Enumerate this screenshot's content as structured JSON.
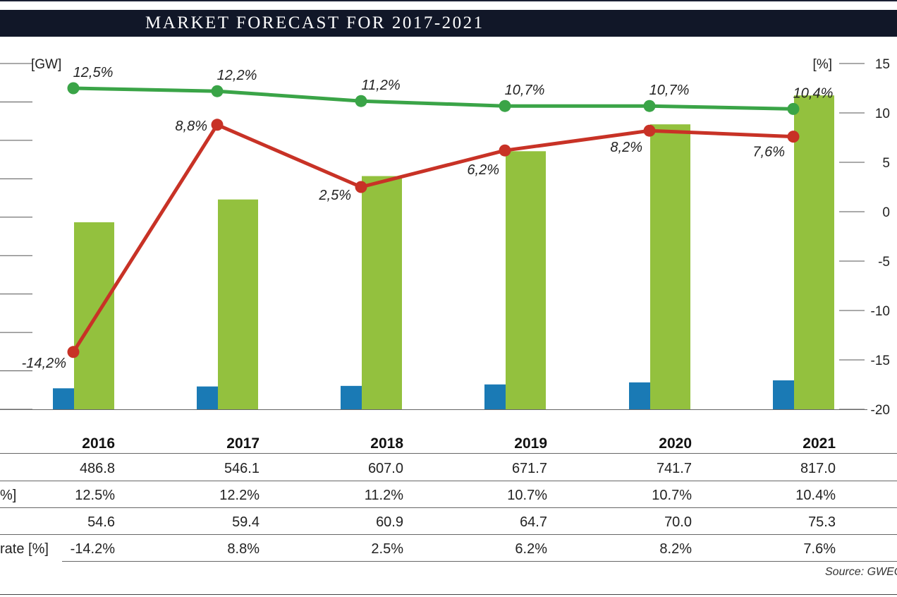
{
  "title": "MARKET FORECAST FOR 2017-2021",
  "source": "Source: GWEC",
  "chart_data": {
    "type": "bar",
    "categories": [
      "2016",
      "2017",
      "2018",
      "2019",
      "2020",
      "2021"
    ],
    "left_axis_unit": "[GW]",
    "right_axis_unit": "[%]",
    "left_ylim": [
      0,
      900
    ],
    "right_ylim": [
      -20,
      15
    ],
    "right_ticks": [
      "15",
      "10",
      "5",
      "0",
      "-5",
      "-10",
      "-15",
      "-20"
    ],
    "grid": false,
    "series": [
      {
        "kind": "bar",
        "color": "#1a7ab5",
        "values": [
          54.6,
          59.4,
          60.9,
          64.7,
          70.0,
          75.3
        ]
      },
      {
        "kind": "bar",
        "color": "#93c13e",
        "values": [
          486.8,
          546.1,
          607.0,
          671.7,
          741.7,
          817.0
        ]
      },
      {
        "kind": "line",
        "color": "#3aa447",
        "axis": "right",
        "values": [
          12.5,
          12.2,
          11.2,
          10.7,
          10.7,
          10.4
        ],
        "labels": [
          "12,5%",
          "12,2%",
          "11,2%",
          "10,7%",
          "10,7%",
          "10,4%"
        ]
      },
      {
        "kind": "line",
        "color": "#c83226",
        "axis": "right",
        "values": [
          -14.2,
          8.8,
          2.5,
          6.2,
          8.2,
          7.6
        ],
        "labels": [
          "-14,2%",
          "8,8%",
          "2,5%",
          "6,2%",
          "8,2%",
          "7,6%"
        ]
      }
    ]
  },
  "table": {
    "columns": [
      "2016",
      "2017",
      "2018",
      "2019",
      "2020",
      "2021"
    ],
    "rows": [
      {
        "label": "",
        "values": [
          "486.8",
          "546.1",
          "607.0",
          "671.7",
          "741.7",
          "817.0"
        ]
      },
      {
        "label": "%]",
        "values": [
          "12.5%",
          "12.2%",
          "11.2%",
          "10.7%",
          "10.7%",
          "10.4%"
        ]
      },
      {
        "label": "",
        "values": [
          "54.6",
          "59.4",
          "60.9",
          "64.7",
          "70.0",
          "75.3"
        ]
      },
      {
        "label": "rate [%]",
        "values": [
          "-14.2%",
          "8.8%",
          "2.5%",
          "6.2%",
          "8.2%",
          "7.6%"
        ]
      }
    ]
  }
}
